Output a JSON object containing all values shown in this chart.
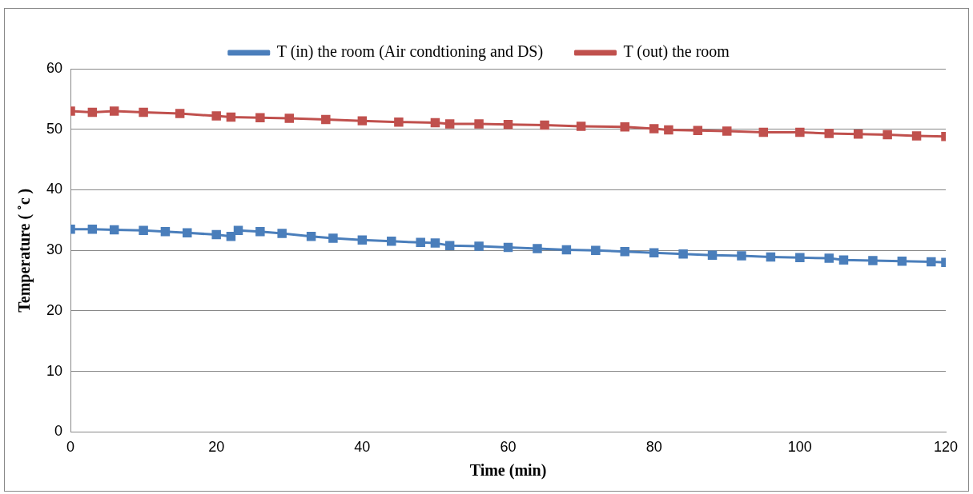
{
  "chart_data": {
    "type": "line",
    "xlabel": "Time (min)",
    "ylabel": "Temperature ( ˚c )",
    "xlim": [
      0,
      120
    ],
    "xticks": [
      0,
      20,
      40,
      60,
      80,
      100,
      120
    ],
    "ylim": [
      0,
      60
    ],
    "yticks": [
      0,
      10,
      20,
      30,
      40,
      50,
      60
    ],
    "grid": "y",
    "legend": "top",
    "marker": "square",
    "line_style": "solid",
    "series": [
      {
        "name": "T (in) the room (Air condtioning and DS)",
        "color": "#4a7ebb",
        "x": [
          0,
          3,
          6,
          10,
          13,
          16,
          20,
          22,
          23,
          26,
          29,
          33,
          36,
          40,
          44,
          48,
          50,
          52,
          56,
          60,
          64,
          68,
          72,
          76,
          80,
          84,
          88,
          92,
          96,
          100,
          104,
          106,
          110,
          114,
          118,
          120
        ],
        "values": [
          33.5,
          33.5,
          33.4,
          33.3,
          33.1,
          32.9,
          32.6,
          32.3,
          33.3,
          33.1,
          32.8,
          32.3,
          32.0,
          31.7,
          31.5,
          31.3,
          31.2,
          30.8,
          30.7,
          30.5,
          30.3,
          30.1,
          30.0,
          29.8,
          29.6,
          29.4,
          29.2,
          29.1,
          28.9,
          28.8,
          28.7,
          28.4,
          28.3,
          28.2,
          28.1,
          28.0
        ]
      },
      {
        "name": "T (out) the room",
        "color": "#c0504d",
        "x": [
          0,
          3,
          6,
          10,
          15,
          20,
          22,
          26,
          30,
          35,
          40,
          45,
          50,
          52,
          56,
          60,
          65,
          70,
          76,
          80,
          82,
          86,
          90,
          95,
          100,
          104,
          108,
          112,
          116,
          120
        ],
        "values": [
          53.0,
          52.8,
          53.0,
          52.8,
          52.6,
          52.2,
          52.0,
          51.9,
          51.8,
          51.6,
          51.4,
          51.2,
          51.1,
          50.9,
          50.9,
          50.8,
          50.7,
          50.5,
          50.4,
          50.1,
          49.9,
          49.8,
          49.7,
          49.5,
          49.5,
          49.3,
          49.2,
          49.1,
          48.9,
          48.8
        ]
      }
    ]
  }
}
